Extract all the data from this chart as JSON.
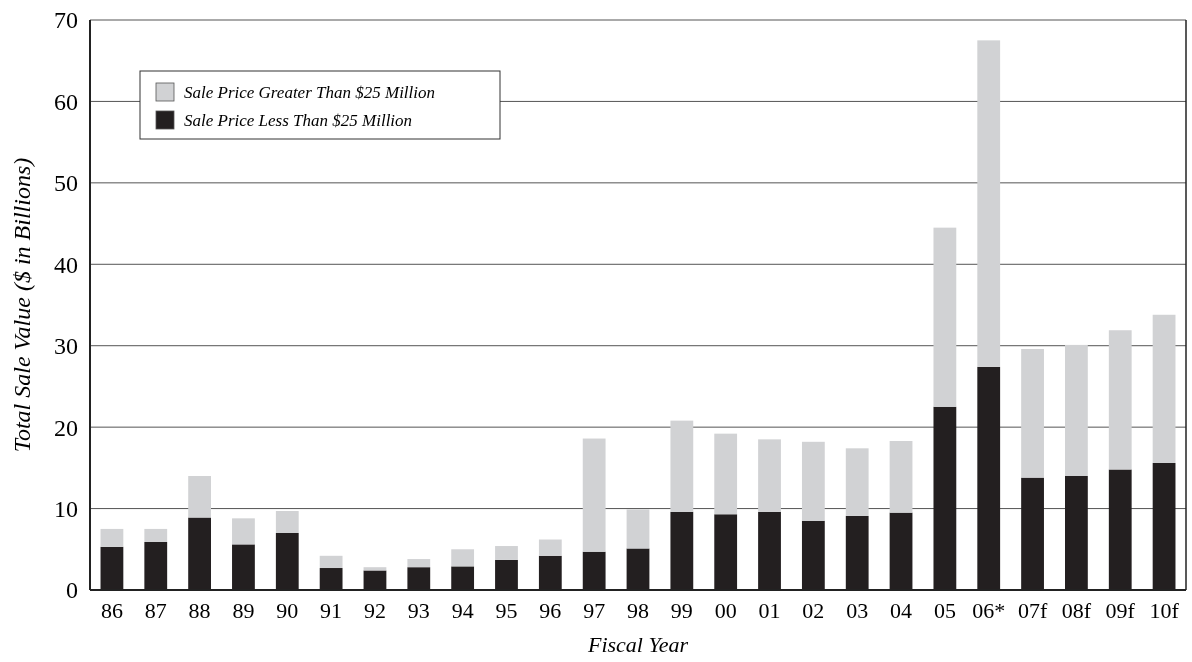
{
  "chart_data": {
    "type": "bar",
    "stacked": true,
    "xlabel": "Fiscal Year",
    "ylabel": "Total Sale Value ($ in Billions)",
    "categories": [
      "86",
      "87",
      "88",
      "89",
      "90",
      "91",
      "92",
      "93",
      "94",
      "95",
      "96",
      "97",
      "98",
      "99",
      "00",
      "01",
      "02",
      "03",
      "04",
      "05",
      "06*",
      "07f",
      "08f",
      "09f",
      "10f"
    ],
    "series": [
      {
        "name": "Sale Price Less Than $25 Million",
        "color": "#231f20",
        "values": [
          5.3,
          5.9,
          8.9,
          5.6,
          7.0,
          2.7,
          2.4,
          2.8,
          2.9,
          3.7,
          4.2,
          4.7,
          5.1,
          9.6,
          9.3,
          9.6,
          8.5,
          9.1,
          9.5,
          22.5,
          27.4,
          13.8,
          14.0,
          14.8,
          15.6
        ]
      },
      {
        "name": "Sale Price Greater Than $25 Million",
        "color": "#d1d2d4",
        "values": [
          2.2,
          1.6,
          5.1,
          3.2,
          2.7,
          1.5,
          0.4,
          1.0,
          2.1,
          1.7,
          2.0,
          13.9,
          4.8,
          11.2,
          9.9,
          8.9,
          9.7,
          8.3,
          8.8,
          22.0,
          40.1,
          15.8,
          16.1,
          17.1,
          18.2
        ]
      }
    ],
    "ylim": [
      0,
      70
    ],
    "yticks": [
      0,
      10,
      20,
      30,
      40,
      50,
      60,
      70
    ],
    "grid": "y",
    "legend": "top left"
  }
}
